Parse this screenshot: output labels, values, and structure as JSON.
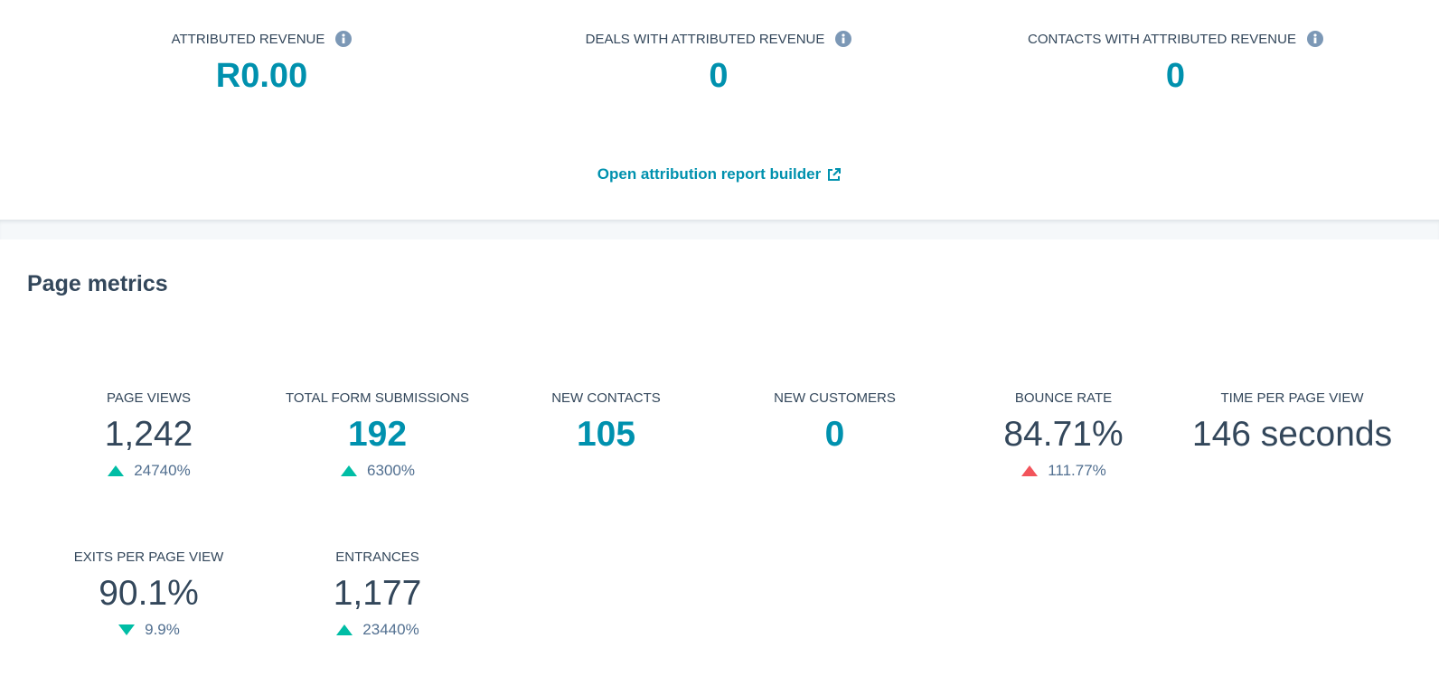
{
  "attribution": {
    "metrics": [
      {
        "label": "ATTRIBUTED REVENUE",
        "value": "R0.00"
      },
      {
        "label": "DEALS WITH ATTRIBUTED REVENUE",
        "value": "0"
      },
      {
        "label": "CONTACTS WITH ATTRIBUTED REVENUE",
        "value": "0"
      }
    ],
    "link": "Open attribution report builder"
  },
  "page_metrics": {
    "title": "Page metrics",
    "metrics": [
      {
        "label": "PAGE VIEWS",
        "value": "1,242",
        "value_color": "#33475b",
        "change": {
          "text": "24740%",
          "direction": "up",
          "color": "#00bda5"
        }
      },
      {
        "label": "TOTAL FORM SUBMISSIONS",
        "value": "192",
        "value_color": "#0091ae",
        "change": {
          "text": "6300%",
          "direction": "up",
          "color": "#00bda5"
        }
      },
      {
        "label": "NEW CONTACTS",
        "value": "105",
        "value_color": "#0091ae"
      },
      {
        "label": "NEW CUSTOMERS",
        "value": "0",
        "value_color": "#0091ae"
      },
      {
        "label": "BOUNCE RATE",
        "value": "84.71%",
        "value_color": "#33475b",
        "change": {
          "text": "111.77%",
          "direction": "up",
          "color": "#f2545b"
        }
      },
      {
        "label": "TIME PER PAGE VIEW",
        "value": "146 seconds",
        "value_color": "#33475b"
      },
      {
        "label": "EXITS PER PAGE VIEW",
        "value": "90.1%",
        "value_color": "#33475b",
        "change": {
          "text": "9.9%",
          "direction": "down",
          "color": "#00bda5"
        }
      },
      {
        "label": "ENTRANCES",
        "value": "1,177",
        "value_color": "#33475b",
        "change": {
          "text": "23440%",
          "direction": "up",
          "color": "#00bda5"
        }
      }
    ]
  }
}
